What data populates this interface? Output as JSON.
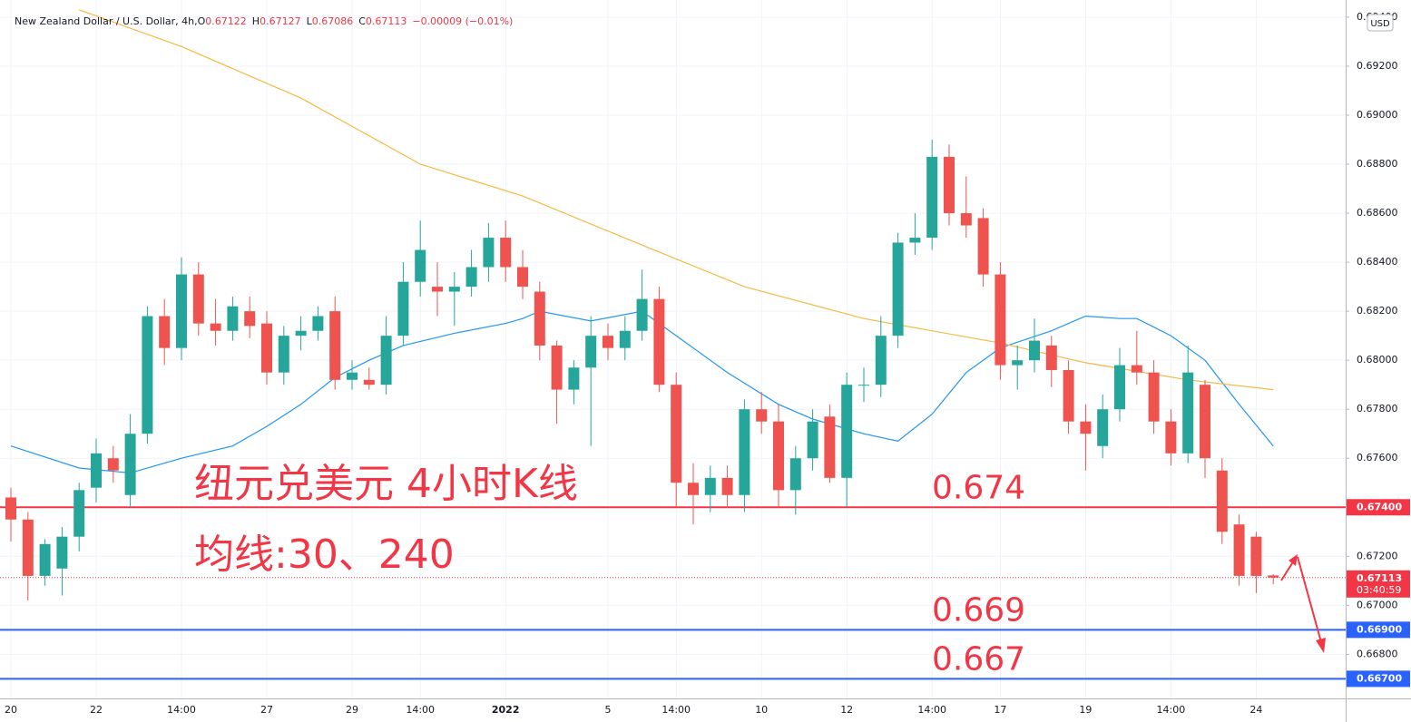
{
  "chart_data": {
    "type": "candlestick",
    "title": "New Zealand Dollar / U.S. Dollar, 4h,",
    "ohlc": [
      {
        "label": "O",
        "value": "0.67122"
      },
      {
        "label": "H",
        "value": "0.67127"
      },
      {
        "label": "L",
        "value": "0.67086"
      },
      {
        "label": "C",
        "value": "0.67113"
      }
    ],
    "change": "−0.00009 (−0.01%)",
    "currency": "USD",
    "annotations": [
      "纽元兑美元 4小时K线",
      "均线:30、240"
    ],
    "categories": [
      "20",
      null,
      null,
      null,
      null,
      "22",
      null,
      null,
      null,
      null,
      "14:00",
      null,
      null,
      null,
      null,
      "27",
      null,
      null,
      null,
      null,
      "29",
      null,
      null,
      null,
      "14:00",
      null,
      null,
      null,
      null,
      "2022",
      null,
      null,
      null,
      null,
      null,
      "5",
      null,
      null,
      null,
      "14:00",
      null,
      null,
      null,
      null,
      "10",
      null,
      null,
      null,
      null,
      "12",
      null,
      null,
      null,
      null,
      "14:00",
      null,
      null,
      null,
      "17",
      null,
      null,
      null,
      null,
      "19",
      null,
      null,
      null,
      null,
      "14:00",
      null,
      null,
      null,
      null,
      "24",
      null
    ],
    "open": [
      0.6744,
      0.6735,
      0.6712,
      0.6715,
      0.6728,
      0.6748,
      0.676,
      0.6745,
      0.677,
      0.6818,
      0.6805,
      0.6835,
      0.6815,
      0.6812,
      0.682,
      0.6815,
      0.6795,
      0.681,
      0.6812,
      0.682,
      0.6792,
      0.6792,
      0.679,
      0.681,
      0.6832,
      0.683,
      0.6828,
      0.683,
      0.6838,
      0.685,
      0.6838,
      0.6828,
      0.6806,
      0.6788,
      0.6797,
      0.681,
      0.6805,
      0.6812,
      0.6825,
      0.679,
      0.675,
      0.6745,
      0.6752,
      0.6745,
      0.678,
      0.6775,
      0.6747,
      0.676,
      0.6777,
      0.6752,
      0.679,
      0.679,
      0.681,
      0.6848,
      0.685,
      0.6883,
      0.686,
      0.6858,
      0.6835,
      0.6798,
      0.68,
      0.6806,
      0.6796,
      0.6775,
      0.6765,
      0.678,
      0.6798,
      0.6795,
      0.6775,
      0.6762,
      0.679,
      0.6755,
      0.6733,
      0.6728,
      0.67122
    ],
    "high": [
      0.6748,
      0.6738,
      0.6727,
      0.6732,
      0.675,
      0.6768,
      0.6765,
      0.6778,
      0.6822,
      0.6825,
      0.6842,
      0.684,
      0.6825,
      0.6826,
      0.6826,
      0.682,
      0.6814,
      0.6818,
      0.6822,
      0.6826,
      0.68,
      0.6797,
      0.6818,
      0.684,
      0.6857,
      0.684,
      0.6836,
      0.6845,
      0.6856,
      0.6857,
      0.6845,
      0.6832,
      0.6808,
      0.68,
      0.6818,
      0.6815,
      0.6818,
      0.6837,
      0.683,
      0.6795,
      0.6758,
      0.6757,
      0.6757,
      0.6784,
      0.6787,
      0.6782,
      0.6765,
      0.678,
      0.6782,
      0.6795,
      0.6797,
      0.6818,
      0.6852,
      0.686,
      0.689,
      0.6888,
      0.6875,
      0.6862,
      0.684,
      0.6806,
      0.6817,
      0.681,
      0.68,
      0.6782,
      0.6786,
      0.6805,
      0.6812,
      0.68,
      0.678,
      0.6806,
      0.6792,
      0.676,
      0.6737,
      0.673,
      0.67127
    ],
    "low": [
      0.6726,
      0.6702,
      0.6708,
      0.6704,
      0.6722,
      0.6742,
      0.675,
      0.674,
      0.6766,
      0.6798,
      0.68,
      0.681,
      0.6806,
      0.6808,
      0.6809,
      0.679,
      0.679,
      0.6804,
      0.6808,
      0.6788,
      0.6788,
      0.6788,
      0.6786,
      0.6806,
      0.6826,
      0.6818,
      0.6814,
      0.6826,
      0.6832,
      0.6832,
      0.6825,
      0.68,
      0.6774,
      0.6782,
      0.6765,
      0.68,
      0.68,
      0.6808,
      0.6787,
      0.674,
      0.6733,
      0.6738,
      0.674,
      0.6738,
      0.677,
      0.674,
      0.6737,
      0.6755,
      0.675,
      0.674,
      0.6783,
      0.6785,
      0.6805,
      0.6843,
      0.6845,
      0.6855,
      0.685,
      0.683,
      0.6792,
      0.6788,
      0.6795,
      0.6789,
      0.677,
      0.6755,
      0.676,
      0.6775,
      0.679,
      0.677,
      0.6757,
      0.6758,
      0.6752,
      0.6725,
      0.6708,
      0.6705,
      0.67086
    ],
    "close": [
      0.6735,
      0.6712,
      0.6725,
      0.6728,
      0.6747,
      0.6762,
      0.6755,
      0.677,
      0.6818,
      0.6805,
      0.6835,
      0.6815,
      0.6812,
      0.6822,
      0.6814,
      0.6795,
      0.681,
      0.6812,
      0.6818,
      0.6792,
      0.6795,
      0.679,
      0.681,
      0.6832,
      0.6845,
      0.6828,
      0.683,
      0.6838,
      0.685,
      0.6838,
      0.683,
      0.6806,
      0.6788,
      0.6797,
      0.681,
      0.6805,
      0.6812,
      0.6825,
      0.679,
      0.675,
      0.6745,
      0.6752,
      0.6745,
      0.678,
      0.6775,
      0.6747,
      0.676,
      0.6775,
      0.6752,
      0.679,
      0.679,
      0.681,
      0.6848,
      0.685,
      0.6883,
      0.686,
      0.6855,
      0.6835,
      0.6798,
      0.68,
      0.6808,
      0.6796,
      0.6775,
      0.677,
      0.678,
      0.6798,
      0.6795,
      0.6775,
      0.6762,
      0.6795,
      0.676,
      0.673,
      0.6712,
      0.6712,
      0.67113
    ],
    "up_color": "#26a69a",
    "down_color": "#ef5350",
    "lines": [
      {
        "color": "#2196f3",
        "x": [
          0,
          4,
          7,
          10,
          13,
          15,
          17,
          19,
          21,
          23,
          26,
          29,
          30,
          31,
          34,
          37,
          39,
          42,
          45,
          47,
          50,
          52,
          54,
          56,
          58,
          61,
          63,
          65,
          66,
          68,
          70,
          72,
          74
        ],
        "values": [
          0.6765,
          0.6756,
          0.6754,
          0.676,
          0.6765,
          0.6773,
          0.6782,
          0.6793,
          0.68,
          0.6806,
          0.6811,
          0.6815,
          0.6817,
          0.682,
          0.6816,
          0.682,
          0.681,
          0.6795,
          0.6782,
          0.6776,
          0.677,
          0.6767,
          0.6778,
          0.6795,
          0.6805,
          0.6812,
          0.6818,
          0.6817,
          0.6817,
          0.681,
          0.68,
          0.6782,
          0.6765
        ]
      },
      {
        "color": "#f5b942",
        "x": [
          4,
          10,
          17,
          24,
          30,
          37,
          43,
          50,
          58,
          63,
          69,
          74
        ],
        "values": [
          0.6943,
          0.6928,
          0.6907,
          0.688,
          0.6867,
          0.6847,
          0.683,
          0.6817,
          0.6807,
          0.6799,
          0.6792,
          0.6788
        ]
      }
    ],
    "levels": [
      {
        "value": 0.674,
        "label": "0.67400",
        "note": "0.674",
        "color": "#f23645"
      },
      {
        "value": 0.669,
        "label": "0.66900",
        "note": "0.669",
        "color": "#2962ff"
      },
      {
        "value": 0.667,
        "label": "0.66700",
        "note": "0.667",
        "color": "#2962ff"
      }
    ],
    "last": {
      "value": 0.67113,
      "label": "0.67113",
      "countdown": "03:40:59",
      "color": "#f23645"
    },
    "ylim": [
      0.6662,
      0.6947
    ],
    "yticks": [
      {
        "value": 0.668,
        "label": "0.66800"
      },
      {
        "value": 0.67,
        "label": "0.67000"
      },
      {
        "value": 0.672,
        "label": "0.67200"
      },
      {
        "value": 0.674,
        "label": "0.67400"
      },
      {
        "value": 0.676,
        "label": "0.67600"
      },
      {
        "value": 0.678,
        "label": "0.67800"
      },
      {
        "value": 0.68,
        "label": "0.68000"
      },
      {
        "value": 0.682,
        "label": "0.68200"
      },
      {
        "value": 0.684,
        "label": "0.68400"
      },
      {
        "value": 0.686,
        "label": "0.68600"
      },
      {
        "value": 0.688,
        "label": "0.68800"
      },
      {
        "value": 0.69,
        "label": "0.69000"
      },
      {
        "value": 0.692,
        "label": "0.69200"
      },
      {
        "value": 0.694,
        "label": "0.69400"
      }
    ],
    "grid": true
  }
}
